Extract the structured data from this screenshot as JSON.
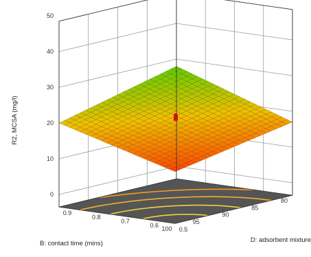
{
  "chart_data": {
    "type": "surface3d",
    "zlabel": "R2, MCSA (mg/l)",
    "xlabel": "B: contact time (mins)",
    "ylabel": "D: adsorbent mixture",
    "x_ticks": [
      "80",
      "85",
      "90",
      "95",
      "100"
    ],
    "y_ticks": [
      "0.5",
      "0.6",
      "0.7",
      "0.8",
      "0.9"
    ],
    "z_ticks": [
      "0",
      "10",
      "20",
      "30",
      "40",
      "50"
    ],
    "xlim": [
      80,
      100
    ],
    "ylim": [
      0.5,
      0.9
    ],
    "zlim": [
      0,
      50
    ],
    "surface_corners": [
      {
        "x": 80,
        "y": 0.5,
        "z": 17
      },
      {
        "x": 100,
        "y": 0.5,
        "z": 11
      },
      {
        "x": 80,
        "y": 0.9,
        "z": 28
      },
      {
        "x": 100,
        "y": 0.9,
        "z": 20
      }
    ],
    "design_point": {
      "x": 90,
      "y": 0.7,
      "z": 19
    },
    "colors": {
      "surface_low": "#ff2a00",
      "surface_mid": "#f0c000",
      "surface_high": "#39d000",
      "floor": "#555555",
      "contour": "#f2d23a",
      "design_point": "#cc1111"
    }
  }
}
